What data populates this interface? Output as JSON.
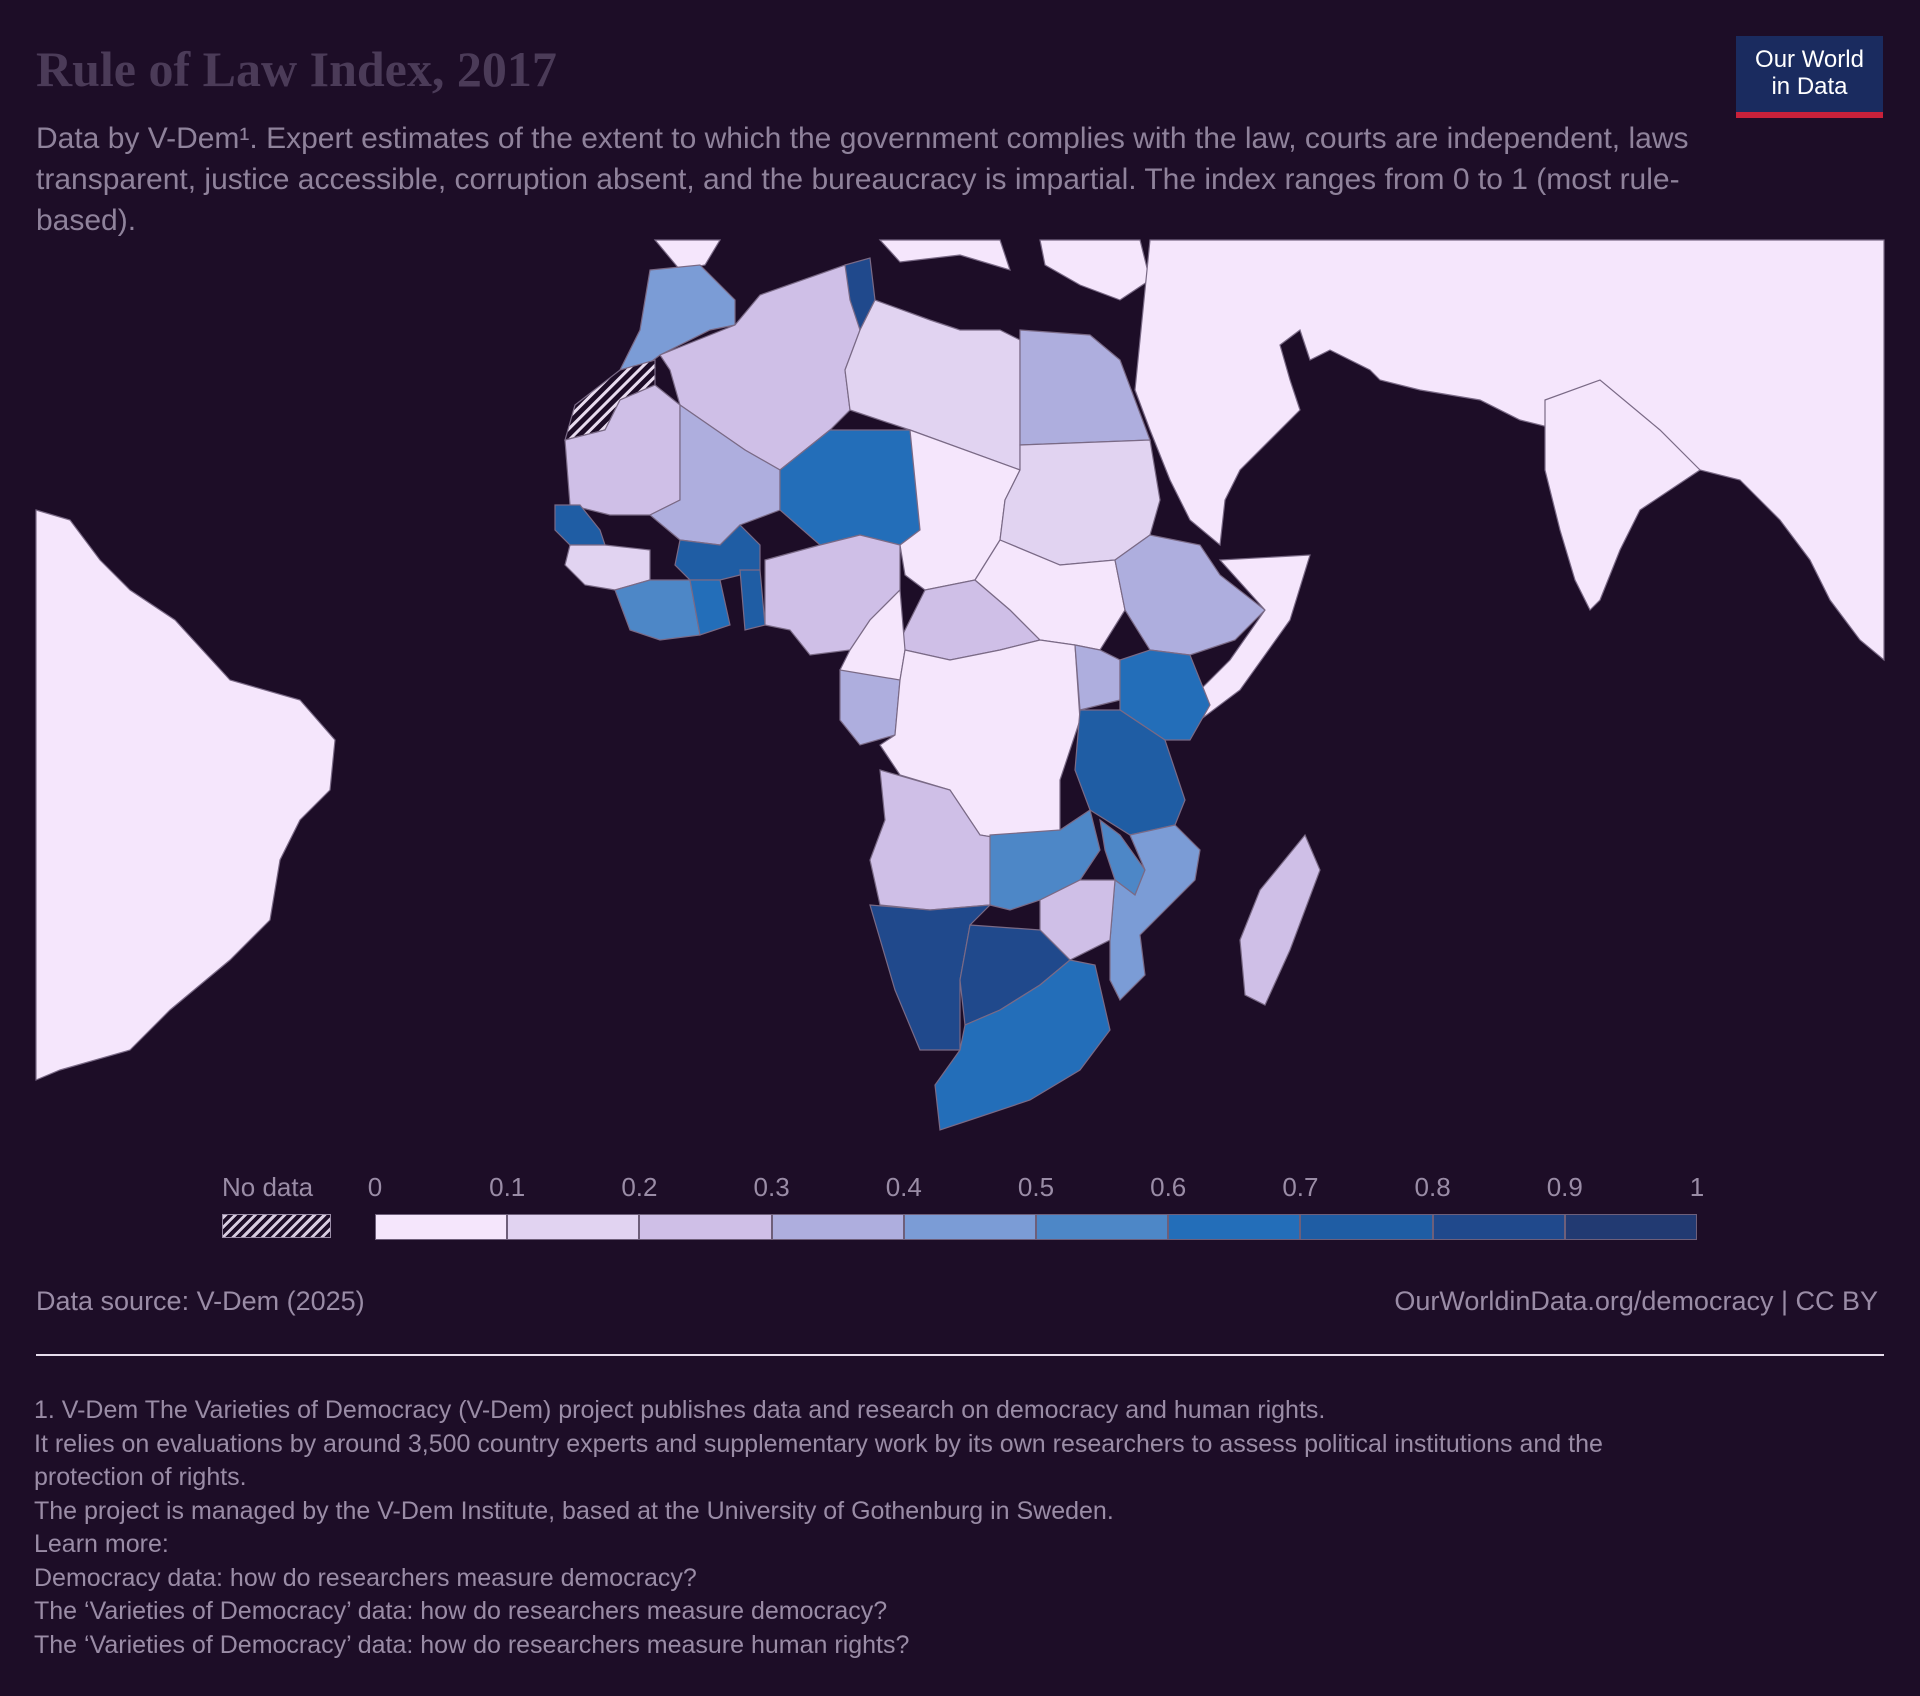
{
  "header": {
    "title": "Rule of Law Index, 2017",
    "subtitle": "Data by V-Dem¹. Expert estimates of the extent to which the government complies with the law, courts are independent, laws transparent, justice accessible, corruption absent, and the bureaucracy is impartial. The index ranges from 0 to 1 (most rule-based)."
  },
  "logo": {
    "line1": "Our World",
    "line2": "in Data"
  },
  "legend": {
    "no_data_label": "No data",
    "ticks": [
      "0",
      "0.1",
      "0.2",
      "0.3",
      "0.4",
      "0.5",
      "0.6",
      "0.7",
      "0.8",
      "0.9",
      "1"
    ],
    "bins": [
      {
        "range": [
          0,
          0.1
        ],
        "color": "#f5e6fc"
      },
      {
        "range": [
          0.1,
          0.2
        ],
        "color": "#e1d3f1"
      },
      {
        "range": [
          0.2,
          0.3
        ],
        "color": "#cfbfe7"
      },
      {
        "range": [
          0.3,
          0.4
        ],
        "color": "#aeaede"
      },
      {
        "range": [
          0.4,
          0.5
        ],
        "color": "#7b9cd6"
      },
      {
        "range": [
          0.5,
          0.6
        ],
        "color": "#4d87c7"
      },
      {
        "range": [
          0.6,
          0.7
        ],
        "color": "#236eb9"
      },
      {
        "range": [
          0.7,
          0.8
        ],
        "color": "#1f5da4"
      },
      {
        "range": [
          0.8,
          0.9
        ],
        "color": "#20498c"
      },
      {
        "range": [
          0.9,
          1.0
        ],
        "color": "#223a72"
      }
    ]
  },
  "map": {
    "background_land_color": "#f5e6fc",
    "ocean_color": "#1d0d27",
    "border_color": "#7a6a86",
    "regions": [
      {
        "name": "Morocco",
        "bin": 4
      },
      {
        "name": "Western Sahara",
        "bin": -1
      },
      {
        "name": "Algeria",
        "bin": 2
      },
      {
        "name": "Tunisia",
        "bin": 8
      },
      {
        "name": "Libya",
        "bin": 1
      },
      {
        "name": "Egypt",
        "bin": 3
      },
      {
        "name": "Mauritania",
        "bin": 2
      },
      {
        "name": "Mali",
        "bin": 3
      },
      {
        "name": "Niger",
        "bin": 6
      },
      {
        "name": "Chad",
        "bin": 0
      },
      {
        "name": "Sudan",
        "bin": 1
      },
      {
        "name": "Senegal",
        "bin": 7
      },
      {
        "name": "Guinea",
        "bin": 1
      },
      {
        "name": "Burkina Faso",
        "bin": 7
      },
      {
        "name": "Cote d'Ivoire",
        "bin": 5
      },
      {
        "name": "Ghana",
        "bin": 6
      },
      {
        "name": "Benin",
        "bin": 7
      },
      {
        "name": "Nigeria",
        "bin": 2
      },
      {
        "name": "Central African Republic",
        "bin": 2
      },
      {
        "name": "South Sudan",
        "bin": 0
      },
      {
        "name": "Ethiopia",
        "bin": 3
      },
      {
        "name": "Somalia",
        "bin": 0
      },
      {
        "name": "Cameroon",
        "bin": 0
      },
      {
        "name": "Gabon",
        "bin": 3
      },
      {
        "name": "DR Congo",
        "bin": 0
      },
      {
        "name": "Uganda",
        "bin": 3
      },
      {
        "name": "Kenya",
        "bin": 6
      },
      {
        "name": "Tanzania",
        "bin": 7
      },
      {
        "name": "Angola",
        "bin": 2
      },
      {
        "name": "Zambia",
        "bin": 5
      },
      {
        "name": "Malawi",
        "bin": 5
      },
      {
        "name": "Mozambique",
        "bin": 4
      },
      {
        "name": "Zimbabwe",
        "bin": 2
      },
      {
        "name": "Namibia",
        "bin": 8
      },
      {
        "name": "Botswana",
        "bin": 8
      },
      {
        "name": "South Africa",
        "bin": 6
      },
      {
        "name": "Madagascar",
        "bin": 2
      }
    ]
  },
  "footer": {
    "source": "Data source: V-Dem (2025)",
    "license": "OurWorldinData.org/democracy | CC BY",
    "notes": [
      "1. V-Dem The Varieties of Democracy (V-Dem) project publishes data and research on democracy and human rights.",
      "It relies on evaluations by around 3,500 country experts and supplementary work by its own researchers to assess political institutions and the",
      "protection of rights.",
      "The project is managed by the V-Dem Institute, based at the University of Gothenburg in Sweden.",
      "Learn more:",
      "Democracy data: how do researchers measure democracy?",
      "The ‘Varieties of Democracy’ data: how do researchers measure democracy?",
      "The ‘Varieties of Democracy’ data: how do researchers measure human rights?"
    ]
  }
}
